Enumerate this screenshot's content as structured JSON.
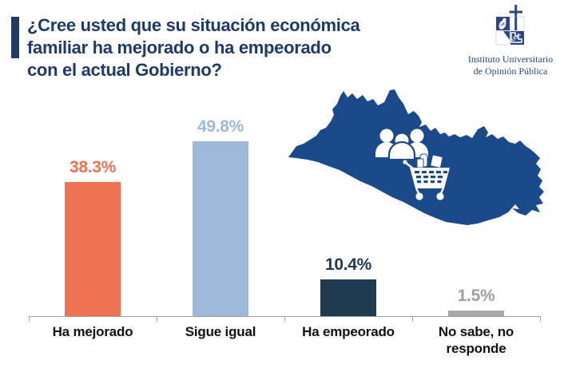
{
  "header": {
    "title_lines": {
      "0": "¿Cree usted que su situación económica",
      "1": "familiar ha mejorado o ha empeorado",
      "2": "con el actual Gobierno?"
    },
    "accent_color": "#1F3A68"
  },
  "logo": {
    "org_line1": "Instituto Universitario",
    "org_line2": "de Opinión Pública",
    "acronym": "UCA",
    "color": "#2B4687"
  },
  "map": {
    "country": "El Salvador",
    "fill": "#1B4A8A",
    "icons": [
      "people-group-icon",
      "shopping-cart-icon"
    ]
  },
  "chart_data": {
    "type": "bar",
    "title": "¿Cree usted que su situación económica familiar ha mejorado o ha empeorado con el actual Gobierno?",
    "categories": [
      "Ha mejorado",
      "Sigue igual",
      "Ha empeorado",
      "No sabe, no responde"
    ],
    "values": [
      38.3,
      49.8,
      10.4,
      1.5
    ],
    "value_labels": [
      "38.3%",
      "49.8%",
      "10.4%",
      "1.5%"
    ],
    "bar_colors": [
      "#EE7352",
      "#9DB8D8",
      "#203A50",
      "#A9A9A9"
    ],
    "label_colors": [
      "#EE7352",
      "#9DB8D8",
      "#203A50",
      "#9E9E9E"
    ],
    "xlabel": "",
    "ylabel": "",
    "ylim": [
      0,
      55
    ],
    "grid": false,
    "legend": false,
    "axis_color": "#A0A0A0"
  }
}
